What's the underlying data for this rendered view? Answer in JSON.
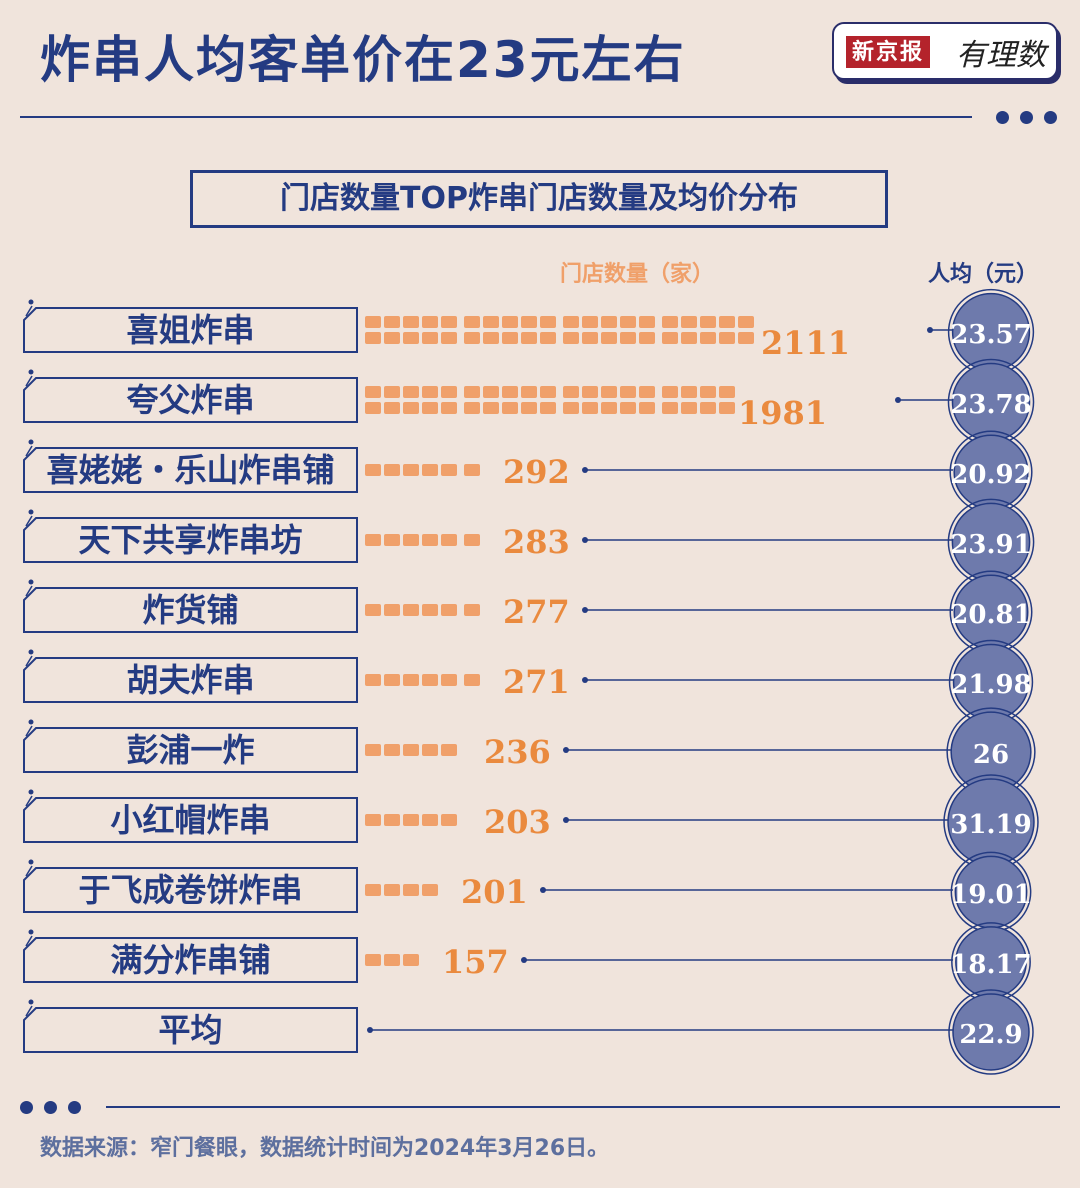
{
  "header": {
    "title": "炸串人均客单价在23元左右",
    "logo_brand": "新京报",
    "logo_sub": "有理数"
  },
  "chart_data": {
    "type": "bar",
    "title": "门店数量TOP炸串门店数量及均价分布",
    "store_label": "门店数量（家）",
    "price_label": "人均（元）",
    "categories": [
      "喜姐炸串",
      "夸父炸串",
      "喜姥姥・乐山炸串铺",
      "天下共享炸串坊",
      "炸货铺",
      "胡夫炸串",
      "彭浦一炸",
      "小红帽炸串",
      "于飞成卷饼炸串",
      "满分炸串铺",
      "平均"
    ],
    "series": [
      {
        "name": "门店数量（家）",
        "values": [
          2111,
          1981,
          292,
          283,
          277,
          271,
          236,
          203,
          201,
          157,
          null
        ]
      },
      {
        "name": "人均（元）",
        "values": [
          23.57,
          23.78,
          20.92,
          23.91,
          20.81,
          21.98,
          26,
          31.19,
          19.01,
          18.17,
          22.9
        ]
      }
    ],
    "store_labels": [
      "2111",
      "1981",
      "292",
      "283",
      "277",
      "271",
      "236",
      "203",
      "201",
      "157",
      ""
    ],
    "price_labels": [
      "23.57",
      "23.78",
      "20.92",
      "23.91",
      "20.81",
      "21.98",
      "26",
      "31.19",
      "19.01",
      "18.17",
      "22.9"
    ]
  },
  "footer": {
    "source": "数据来源：窄门餐眼，数据统计时间为2024年3月26日。"
  },
  "colors": {
    "navy": "#243b82",
    "orange": "#f0a06a",
    "orange_text": "#ea8a3e",
    "background": "#f0e4dc",
    "circle": "#6e7aac"
  }
}
